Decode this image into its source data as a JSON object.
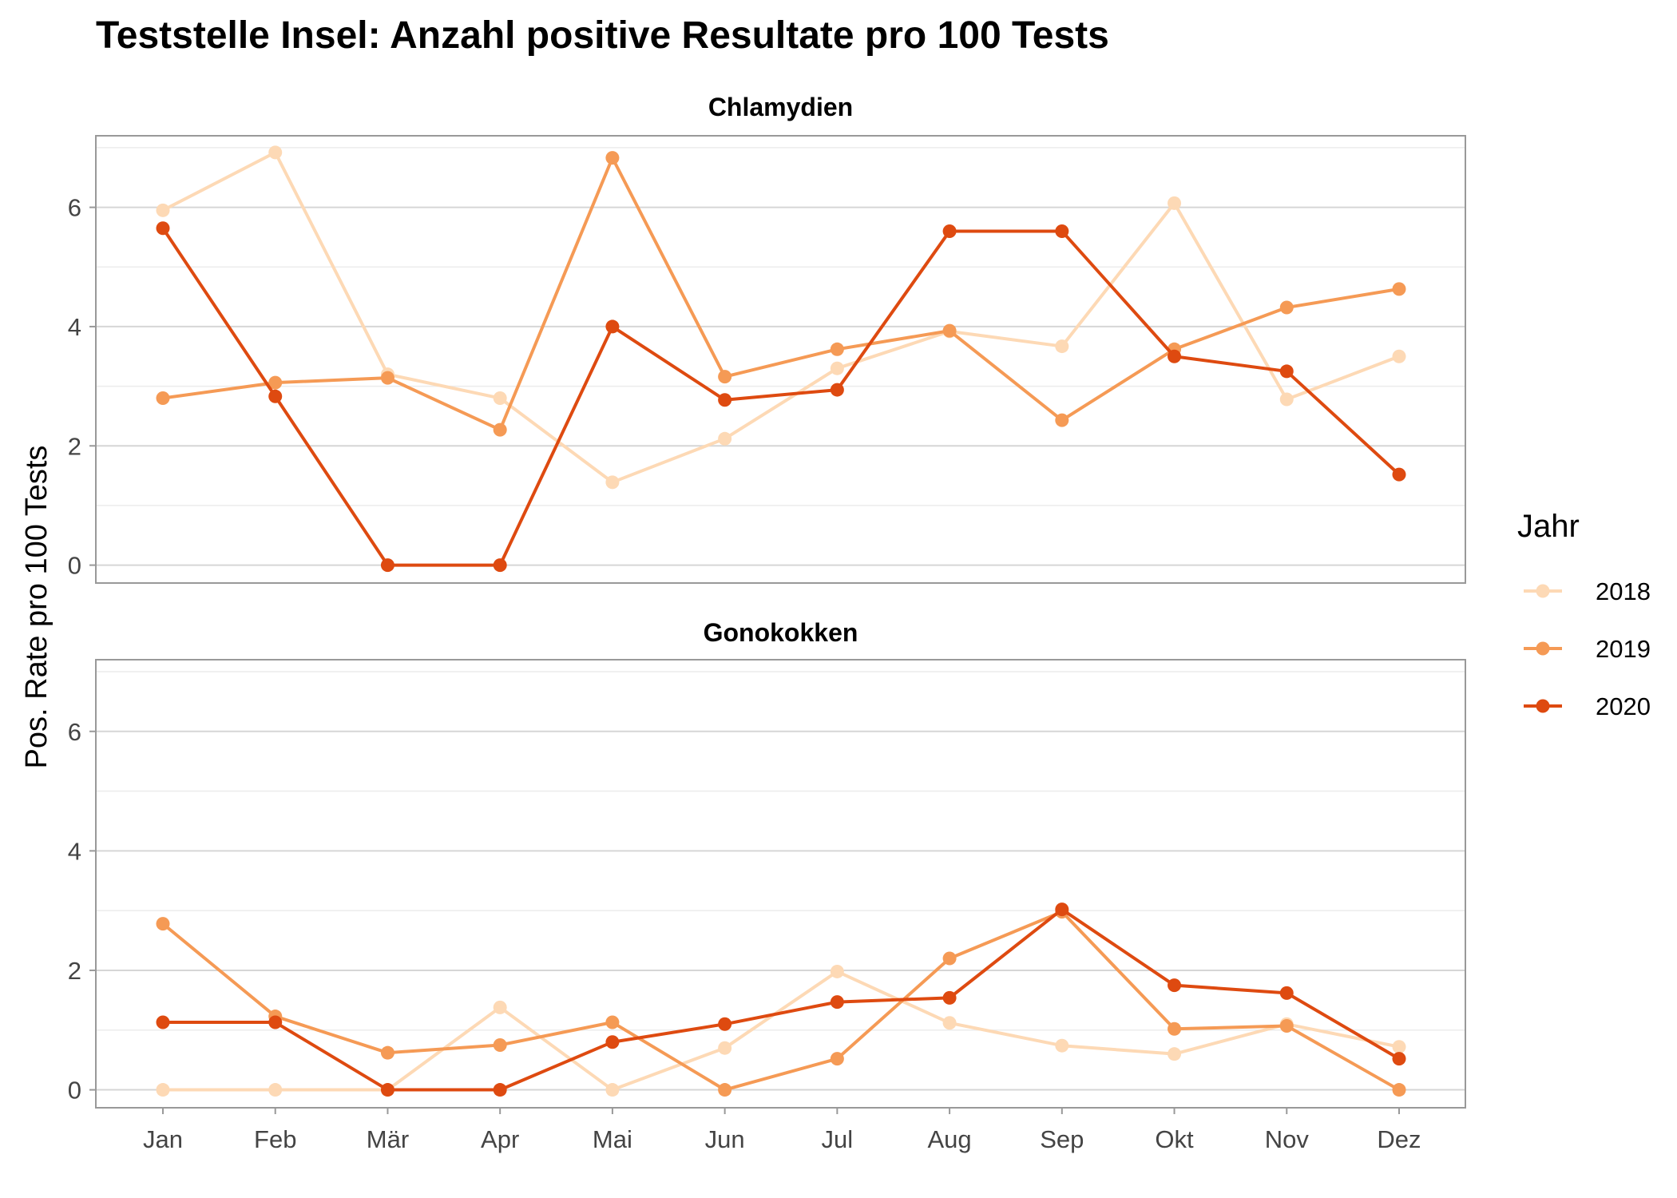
{
  "chart_data": {
    "type": "line",
    "title": "Teststelle Insel: Anzahl positive Resultate pro 100 Tests",
    "ylabel": "Pos. Rate pro 100 Tests",
    "xlabel": "",
    "categories": [
      "Jan",
      "Feb",
      "Mär",
      "Apr",
      "Mai",
      "Jun",
      "Jul",
      "Aug",
      "Sep",
      "Okt",
      "Nov",
      "Dez"
    ],
    "ylim": [
      -0.3,
      7.2
    ],
    "yticks": [
      0,
      2,
      4,
      6
    ],
    "legend": {
      "title": "Jahr",
      "placement": "right",
      "entries": [
        "2018",
        "2019",
        "2020"
      ]
    },
    "colors": {
      "2018": "#fdd9b5",
      "2019": "#f59a55",
      "2020": "#de4a10"
    },
    "grid": true,
    "panels": [
      {
        "name": "Chlamydien",
        "series": [
          {
            "name": "2018",
            "values": [
              5.95,
              6.92,
              3.2,
              2.8,
              1.39,
              2.12,
              3.3,
              3.92,
              3.67,
              6.07,
              2.78,
              3.5
            ]
          },
          {
            "name": "2019",
            "values": [
              2.8,
              3.06,
              3.14,
              2.27,
              6.83,
              3.16,
              3.62,
              3.93,
              2.43,
              3.62,
              4.32,
              4.63
            ]
          },
          {
            "name": "2020",
            "values": [
              5.65,
              2.83,
              0,
              0,
              4.0,
              2.77,
              2.94,
              5.6,
              5.6,
              3.5,
              3.25,
              1.52
            ]
          }
        ]
      },
      {
        "name": "Gonokokken",
        "series": [
          {
            "name": "2018",
            "values": [
              0,
              0,
              0,
              1.38,
              0,
              0.7,
              1.98,
              1.12,
              0.74,
              0.6,
              1.1,
              0.72
            ]
          },
          {
            "name": "2019",
            "values": [
              2.78,
              1.23,
              0.62,
              0.75,
              1.13,
              0,
              0.52,
              2.2,
              2.98,
              1.02,
              1.07,
              0
            ]
          },
          {
            "name": "2020",
            "values": [
              1.13,
              1.13,
              0,
              0,
              0.8,
              1.1,
              1.47,
              1.54,
              3.02,
              1.75,
              1.62,
              0.52
            ]
          }
        ]
      }
    ]
  }
}
